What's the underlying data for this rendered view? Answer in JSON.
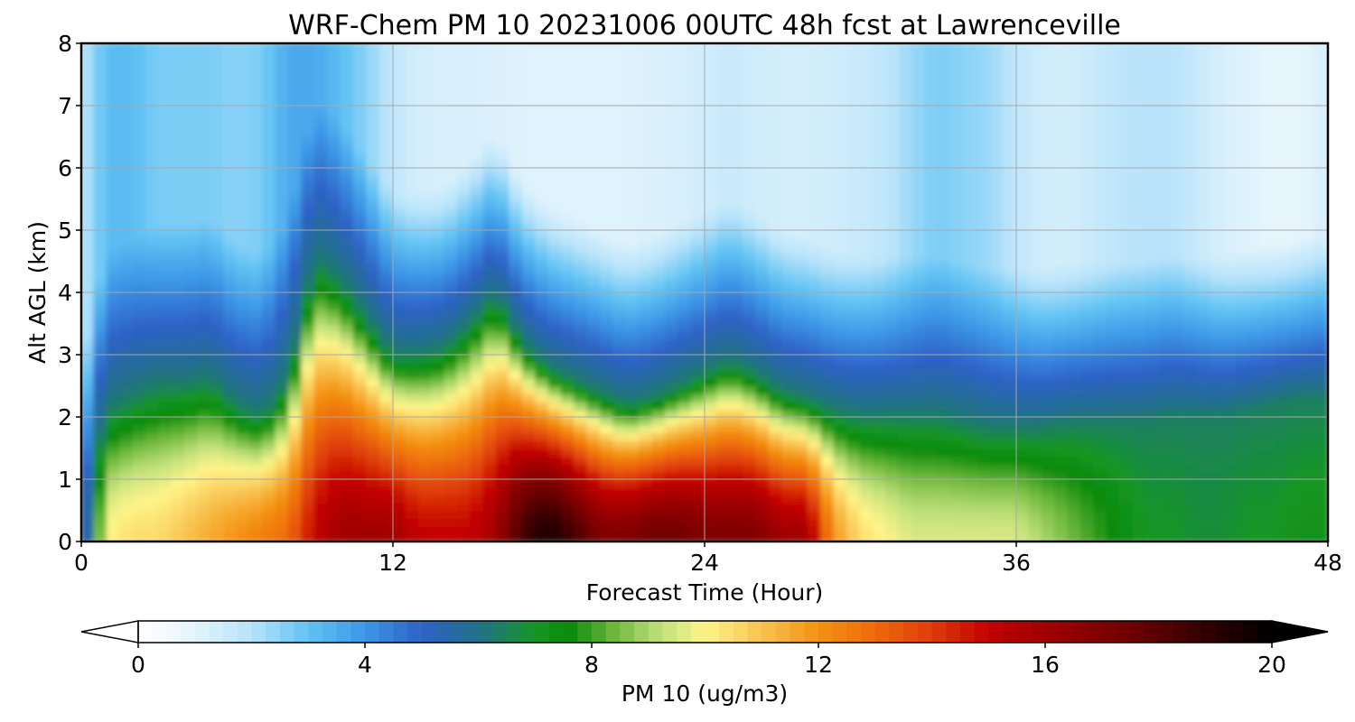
{
  "chart_data": {
    "type": "heatmap",
    "title": "WRF-Chem PM 10  20231006 00UTC 48h fcst at Lawrenceville",
    "xlabel": "Forecast Time (Hour)",
    "ylabel": "Alt AGL (km)",
    "xlim": [
      0,
      48
    ],
    "ylim": [
      0,
      8
    ],
    "xticks": [
      0,
      12,
      24,
      36,
      48
    ],
    "yticks": [
      0,
      1,
      2,
      3,
      4,
      5,
      6,
      7,
      8
    ],
    "grid": true,
    "colorbar": {
      "label": "PM 10  (ug/m3)",
      "ticks": [
        0,
        4,
        8,
        12,
        16,
        20
      ],
      "range": [
        0,
        20
      ],
      "extend": "both",
      "orientation": "horizontal",
      "colors": {
        "0": "#ffffff",
        "1": "#e3f4fc",
        "2": "#b7e3fa",
        "3": "#62c3f4",
        "4": "#3c96e6",
        "5": "#2e62c6",
        "6": "#22708a",
        "7": "#159624",
        "7.6": "#0a8a0a",
        "8.4": "#6fb83c",
        "9.2": "#c0e07a",
        "10": "#fff58a",
        "11": "#f8c250",
        "12": "#f49212",
        "13": "#ed6a0c",
        "14": "#de3c08",
        "15": "#c20000",
        "16": "#a00000",
        "17.5": "#6e0000",
        "19": "#2a0000",
        "20": "#000000"
      }
    },
    "x_hours": [
      0,
      1,
      2,
      3,
      4,
      5,
      6,
      7,
      8,
      9,
      10,
      11,
      12,
      13,
      14,
      15,
      16,
      17,
      18,
      19,
      20,
      21,
      22,
      23,
      24,
      25,
      26,
      27,
      28,
      29,
      30,
      31,
      32,
      33,
      34,
      35,
      36,
      37,
      38,
      39,
      40,
      41,
      42,
      43,
      44,
      45,
      46,
      47,
      48
    ],
    "z_km": [
      0,
      0.25,
      0.5,
      1,
      1.5,
      2,
      2.5,
      3,
      3.5,
      4,
      5,
      6,
      7,
      8
    ],
    "pm10_profile": {
      "surface": [
        4,
        10,
        10.5,
        10.5,
        11,
        11.5,
        12,
        12.5,
        13,
        15,
        16,
        16,
        16,
        15,
        15,
        15,
        16,
        18.5,
        19.5,
        18.5,
        17,
        17,
        17.5,
        17.5,
        17,
        17,
        17,
        16,
        16,
        12,
        10.5,
        10,
        9.5,
        9.5,
        9.5,
        9.5,
        9.5,
        9,
        8.5,
        8,
        7.5,
        7,
        7,
        6.8,
        6.8,
        7,
        7,
        7.2,
        7.2
      ],
      "bl_height_km": [
        0.3,
        2.1,
        2.3,
        2.5,
        2.5,
        2.6,
        2.2,
        2.0,
        2.6,
        4.5,
        4.2,
        3.6,
        3.0,
        3.0,
        3.1,
        3.5,
        4.0,
        3.2,
        2.8,
        2.6,
        2.4,
        2.2,
        2.3,
        2.5,
        2.7,
        2.9,
        2.7,
        2.4,
        2.3,
        2.1,
        2.0,
        2.0,
        2.0,
        2.0,
        1.9,
        1.8,
        1.8,
        1.8,
        1.9,
        1.9,
        1.9,
        1.9,
        2.0,
        2.0,
        2.0,
        2.1,
        2.2,
        2.3,
        2.3
      ],
      "aloft_max": [
        2,
        3.5,
        3.5,
        3,
        3,
        3,
        2.8,
        3,
        4,
        4,
        3.5,
        2.8,
        2,
        1.5,
        1.4,
        1.4,
        1.3,
        1.2,
        1.2,
        1.2,
        1.2,
        1.2,
        1.3,
        1.4,
        1.6,
        1.8,
        1.6,
        1.5,
        1.5,
        1.6,
        1.8,
        2,
        2.6,
        3,
        2.8,
        2.6,
        2,
        1.6,
        1.5,
        1.8,
        2.1,
        2.2,
        2.2,
        1.8,
        1.4,
        1.2,
        1,
        1,
        1.5
      ]
    }
  }
}
